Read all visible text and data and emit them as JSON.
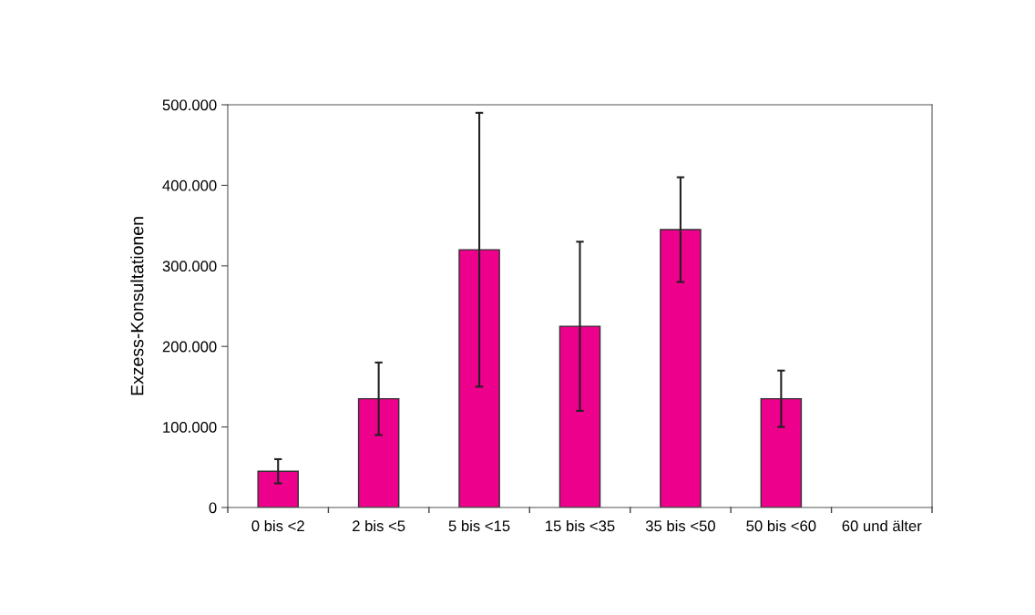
{
  "chart_data": {
    "type": "bar",
    "ylabel": "Exzess-Konsultationen",
    "categories": [
      "0 bis <2",
      "2 bis <5",
      "5 bis <15",
      "15 bis <35",
      "35 bis <50",
      "50 bis <60",
      "60 und älter"
    ],
    "values": [
      45000,
      135000,
      320000,
      225000,
      345000,
      135000,
      0
    ],
    "errors": [
      [
        30000,
        60000
      ],
      [
        90000,
        180000
      ],
      [
        150000,
        490000
      ],
      [
        120000,
        330000
      ],
      [
        280000,
        410000
      ],
      [
        100000,
        170000
      ],
      null
    ],
    "color": "#ec008c",
    "ylim": [
      0,
      500000
    ],
    "yticks": [
      {
        "value": 0,
        "label": "0"
      },
      {
        "value": 100000,
        "label": "100.000"
      },
      {
        "value": 200000,
        "label": "200.000"
      },
      {
        "value": 300000,
        "label": "300.000"
      },
      {
        "value": 400000,
        "label": "400.000"
      },
      {
        "value": 500000,
        "label": "500.000"
      }
    ],
    "grid": false
  }
}
